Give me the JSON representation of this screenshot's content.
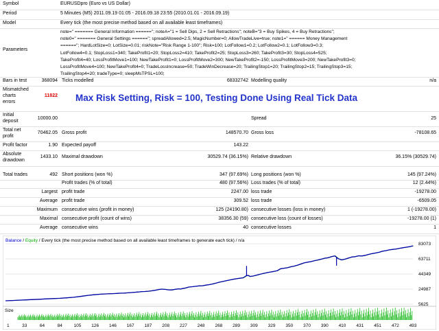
{
  "report": {
    "symbol_label": "Symbol",
    "symbol_value": "EURUSDpro (Euro vs US Dollar)",
    "period_label": "Period",
    "period_value": "5 Minutes (M5) 2011.09.19 01:05 - 2016.09.18 23:55 (2010.01.01 - 2016.09.19)",
    "model_label": "Model",
    "model_value": "Every tick (the most precise method based on all available least timeframes)",
    "parameters_label": "Parameters",
    "parameters_lines": [
      "note=\" ======= General Information ======\"; noteA=\"1 = Sell Dips, 2 = Sell Retractions\"; noteB=\"3 = Buy Spikes, 4 = Buy Retractions\";",
      "note0=\" ======= General Settings ======\"; spreadAllowed=2.5; MagicNumber=0; AllowTradeLive=true; note1=\" ====== Money Management",
      "======\"; HardLotSize=0; LotSize=0.01; riskNote=\"Risk Range 1-100\"; Risk=100; LotFollow1=0.2; LotFollow2=0.1; LotFollow3=0.3;",
      "LotFollow4=0.1; StopLoss1=340; TakeProfit1=20; StopLoss2=410; TakeProfit2=25; StopLoss3=260; TakeProfit3=30; StopLoss4=525;",
      "TakeProfit4=40; LossProfitMove1=100; NewTakeProfit1=0; LossProfitMove2=300; NewTakeProfit2=-150; LossProfitMove3=200; NewTakeProfit3=0;",
      "LossProfitMove4=100; NewTakeProfit4=0; TradeLossIncrease=50; TradeWinDecrease=20; TrailingStop1=20; TrailingStop2=15; TrailingStop3=15;",
      "TrailingStop4=20; tradeType=0; sleepMsTPSL=100;"
    ],
    "bars_label": "Bars in test",
    "bars_value": "368094",
    "ticks_label": "Ticks modelled",
    "ticks_value": "68332742",
    "quality_label": "Modelling quality",
    "quality_value": "n/a",
    "mismatch_label_1": "Mismatched",
    "mismatch_label_2": "charts",
    "mismatch_label_3": "errors",
    "mismatch_value": "11822",
    "banner": "Max Risk Setting, Risk = 100, Testing Done Using Real Tick Data",
    "deposit_label_1": "Initial",
    "deposit_label_2": "deposit",
    "deposit_value": "10000.00",
    "spread_label": "Spread",
    "spread_value": "25",
    "netprofit_label_1": "Total net",
    "netprofit_label_2": "profit",
    "netprofit_value": "70462.05",
    "grossprofit_label": "Gross profit",
    "grossprofit_value": "148570.70",
    "grossloss_label": "Gross loss",
    "grossloss_value": "-78108.65",
    "pf_label": "Profit factor",
    "pf_value": "1.90",
    "payoff_label": "Expected payoff",
    "payoff_value": "143.22",
    "absdd_label_1": "Absolute",
    "absdd_label_2": "drawdown",
    "absdd_value": "1433.10",
    "maxdd_label": "Maximal drawdown",
    "maxdd_value": "30529.74 (36.15%)",
    "reldd_label": "Relative drawdown",
    "reldd_value": "36.15% (30529.74)",
    "trades_label": "Total trades",
    "trades_value": "492",
    "short_label": "Short positions (won %)",
    "short_value": "347 (97.69%)",
    "long_label": "Long positions (won %)",
    "long_value": "145 (97.24%)",
    "profitt_label": "Profit trades (% of total)",
    "profitt_value": "480 (97.56%)",
    "losst_label": "Loss trades (% of total)",
    "losst_value": "12 (2.44%)",
    "largest_label": "Largest",
    "largest_profit_label": "profit trade",
    "largest_profit_value": "2247.00",
    "largest_loss_label": "loss trade",
    "largest_loss_value": "-19278.00",
    "average_label": "Average",
    "average_profit_label": "profit trade",
    "average_profit_value": "309.52",
    "average_loss_label": "loss trade",
    "average_loss_value": "-6509.05",
    "maximum_label": "Maximum",
    "maxwins_label": "consecutive wins (profit in money)",
    "maxwins_value": "125 (24190.80)",
    "maxlosses_label": "consecutive losses (loss in money)",
    "maxlosses_value": "1 (-19278.00)",
    "maximal_label": "Maximal",
    "maxprofit_label": "consecutive profit (count of wins)",
    "maxprofit_value": "38356.30 (59)",
    "maxloss_label": "consecutive loss (count of losses)",
    "maxloss_value": "-19278.00 (1)",
    "average2_label": "Average",
    "avgwins_label": "consecutive wins",
    "avgwins_value": "40",
    "avglosses_label": "consecutive losses",
    "avglosses_value": "1"
  },
  "chart_header": {
    "balance": "Balance",
    "slash": " / ",
    "equity": "Equity",
    "rest": " / Every tick (the most precise method based on all available least timeframes to generate each tick) / n/a"
  },
  "chart_colors": {
    "balance": "#0000aa",
    "equity": "#00aa00",
    "size_bars": "#22bb22",
    "header_balance": "#0000cc",
    "header_equity": "#00aa00"
  },
  "chart_data": {
    "type": "line",
    "title": "",
    "series": [
      {
        "name": "Balance",
        "x": [
          0,
          20,
          40,
          60,
          80,
          100,
          120,
          140,
          160,
          180,
          200,
          220,
          240,
          260,
          280,
          300,
          320,
          330,
          340,
          350,
          360,
          370,
          380,
          390,
          395,
          400,
          410,
          420,
          430,
          440,
          450,
          460,
          470,
          480,
          490,
          500,
          510,
          515,
          520,
          530,
          540,
          550,
          560,
          570,
          580,
          590,
          600,
          610,
          620,
          630,
          640,
          650,
          660,
          670,
          680,
          690,
          700,
          710,
          715,
          720,
          730,
          740,
          750,
          760,
          770,
          780,
          790,
          800,
          810,
          820,
          830,
          840,
          850,
          860,
          870,
          880,
          890,
          900,
          910,
          920,
          930,
          940,
          950,
          960,
          970,
          980,
          990,
          1000,
          1010,
          1020,
          1030,
          1040,
          1050,
          1060,
          1070,
          1080,
          1090,
          1100,
          1110,
          1120,
          1130,
          1140,
          1150,
          1160,
          1170,
          1180,
          1190,
          1200
        ],
        "y": [
          10000,
          10400,
          10800,
          11200,
          11600,
          12000,
          12500,
          12800,
          13200,
          13800,
          14500,
          15600,
          16800,
          17800,
          18500,
          18900,
          19300,
          19500,
          19800,
          19900,
          20200,
          20600,
          20900,
          21300,
          21500,
          21800,
          21900,
          22300,
          22800,
          23400,
          24400,
          25000,
          24600,
          24000,
          23900,
          24700,
          25300,
          25000,
          25600,
          26400,
          27600,
          28100,
          28600,
          29100,
          29300,
          30100,
          30700,
          31600,
          32700,
          33900,
          34800,
          35700,
          36600,
          37600,
          38300,
          38900,
          39500,
          42300,
          42500,
          41200,
          41800,
          42900,
          44100,
          45100,
          46100,
          46900,
          47600,
          48500,
          51100,
          51700,
          52400,
          53600,
          54500,
          55700,
          57200,
          58700,
          59600,
          60300,
          61400,
          62300,
          63400,
          64600,
          65200,
          66500,
          67600,
          64000,
          62400,
          63400,
          64800,
          66200,
          66500,
          67700,
          67500,
          68300,
          69500,
          70500,
          71300,
          72200,
          73600,
          74300,
          75200,
          75900,
          76400,
          77300,
          78000,
          78700,
          79400,
          80462
        ]
      }
    ],
    "drop_markers": [
      {
        "x": 710,
        "y_top": 54700,
        "y_bottom": 42300
      },
      {
        "x": 975,
        "y_top": 66000,
        "y_bottom": 55000
      }
    ],
    "y_ticks": [
      83073,
      63711,
      44349,
      24987,
      5625
    ],
    "ylim": [
      5625,
      83073
    ],
    "size_ticks": [
      1,
      33,
      64,
      84,
      105,
      126,
      146,
      167,
      187,
      208,
      227,
      248,
      268,
      289,
      309,
      329,
      350,
      370,
      390,
      410,
      431,
      451,
      472,
      493
    ],
    "size_label": "Size",
    "grid": true
  }
}
